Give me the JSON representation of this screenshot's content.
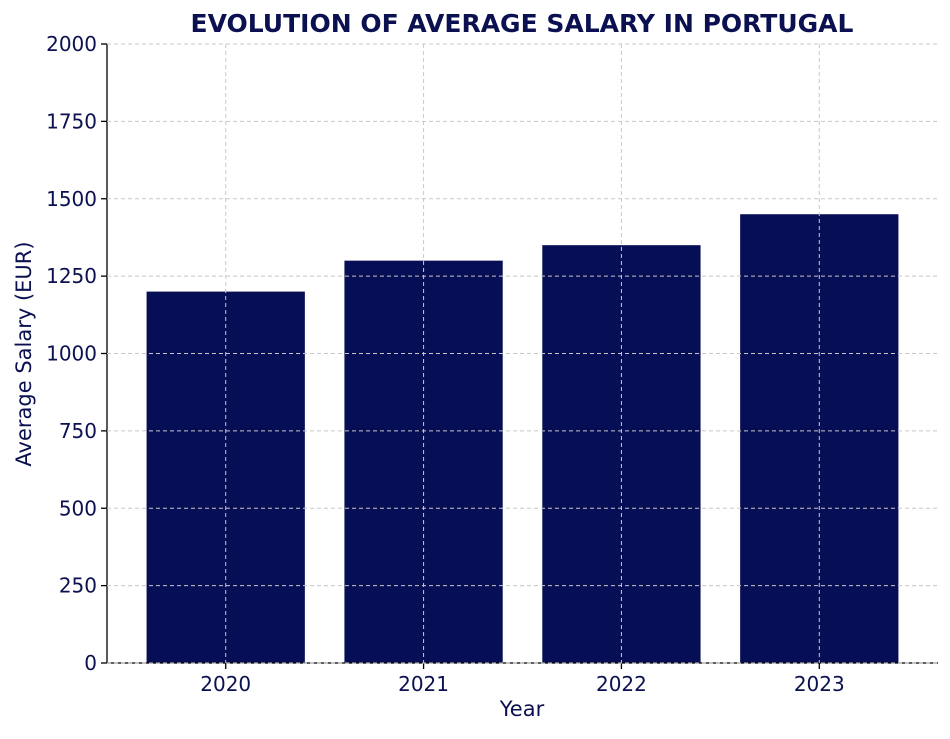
{
  "chart_data": {
    "type": "bar",
    "title": "EVOLUTION OF AVERAGE SALARY IN PORTUGAL",
    "xlabel": "Year",
    "ylabel": "Average Salary (EUR)",
    "categories": [
      "2020",
      "2021",
      "2022",
      "2023"
    ],
    "values": [
      1200,
      1300,
      1350,
      1450
    ],
    "ylim": [
      0,
      2000
    ],
    "yticks": [
      "0",
      "250",
      "500",
      "750",
      "1000",
      "1250",
      "1500",
      "1750",
      "2000"
    ],
    "grid": true,
    "colors": {
      "bar": "#060f55",
      "text": "#0b1150",
      "grid": "#c8c8c8"
    }
  }
}
